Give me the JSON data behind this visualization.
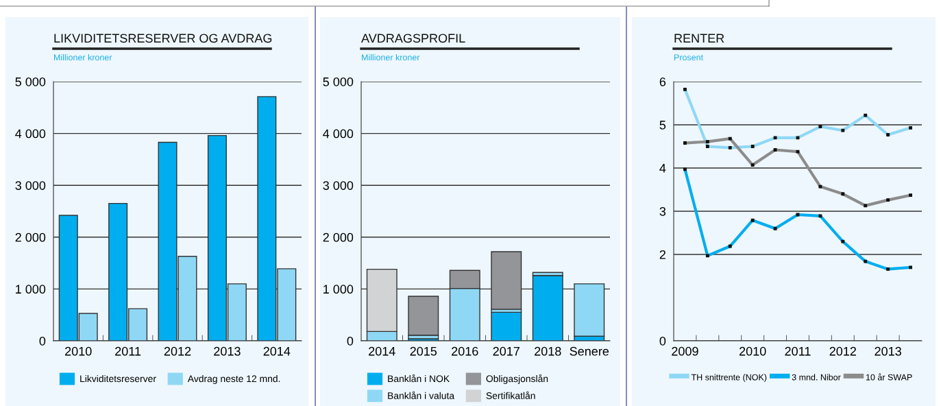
{
  "chart_data": [
    {
      "type": "bar",
      "title": "LIKVIDITETSRESERVER OG AVDRAG",
      "subtitle": "Millioner kroner",
      "categories": [
        "2010",
        "2011",
        "2012",
        "2013",
        "2014"
      ],
      "series": [
        {
          "name": "Likviditetsreserver",
          "color": "#00aeef",
          "values": [
            2420,
            2650,
            3830,
            3960,
            4710
          ]
        },
        {
          "name": "Avdrag neste 12 mnd.",
          "color": "#8fd8f5",
          "values": [
            530,
            620,
            1630,
            1100,
            1390
          ]
        }
      ],
      "ylim": [
        0,
        5000
      ],
      "yticks": [
        0,
        {
          "value": 1000,
          "label": "1 000"
        },
        {
          "value": 2000,
          "label": "2 000"
        },
        {
          "value": 3000,
          "label": "3 000"
        },
        {
          "value": 4000,
          "label": "4 000"
        },
        {
          "value": 5000,
          "label": "5 000"
        }
      ],
      "grid": "y",
      "legend": "bottom"
    },
    {
      "type": "bar",
      "stacked": true,
      "title": "AVDRAGSPROFIL",
      "subtitle": "Millioner kroner",
      "categories": [
        "2014",
        "2015",
        "2016",
        "2017",
        "2018",
        "Senere"
      ],
      "series": [
        {
          "name": "Banklån i NOK",
          "color": "#00aeef",
          "values": [
            null,
            40,
            null,
            550,
            1260,
            90
          ]
        },
        {
          "name": "Banklån i valuta",
          "color": "#8fd8f5",
          "values": [
            180,
            70,
            1010,
            60,
            60,
            1010
          ]
        },
        {
          "name": "Obligasjonslån",
          "color": "#939598",
          "values": [
            0,
            750,
            350,
            1110,
            0,
            0
          ]
        },
        {
          "name": "Sertifikatlån",
          "color": "#d1d3d4",
          "values": [
            1200,
            0,
            0,
            0,
            0,
            0
          ]
        }
      ],
      "ylim": [
        0,
        5000
      ],
      "yticks": [
        0,
        {
          "value": 1000,
          "label": "1 000"
        },
        {
          "value": 2000,
          "label": "2 000"
        },
        {
          "value": 3000,
          "label": "3 000"
        },
        {
          "value": 4000,
          "label": "4 000"
        },
        {
          "value": 5000,
          "label": "5 000"
        }
      ],
      "grid": "y",
      "legend": "bottom"
    },
    {
      "type": "line",
      "title": "RENTER",
      "subtitle": "Prosent",
      "categories": [
        "2009",
        null,
        null,
        "2010",
        null,
        "2011",
        null,
        "2012",
        null,
        "2013",
        null
      ],
      "series": [
        {
          "name": "TH snittrente (NOK)",
          "color": "#8fd8f5",
          "values": [
            5.82,
            4.5,
            4.47,
            4.5,
            4.7,
            4.7,
            4.96,
            4.87,
            5.22,
            4.77,
            4.93
          ]
        },
        {
          "name": "3 mnd. Nibor",
          "color": "#00aeef",
          "values": [
            3.97,
            1.97,
            2.19,
            2.79,
            2.6,
            2.92,
            2.89,
            2.3,
            1.84,
            1.66,
            1.7
          ]
        },
        {
          "name": "10 år SWAP",
          "color": "#8c8c8c",
          "values": [
            4.58,
            4.61,
            4.68,
            4.07,
            4.42,
            4.38,
            3.57,
            3.4,
            3.13,
            3.26,
            3.37
          ]
        }
      ],
      "ylim": [
        0,
        6
      ],
      "yticks": [
        0,
        2,
        3,
        4,
        5,
        6
      ],
      "grid": "y",
      "legend": "bottom",
      "marker": "square",
      "line_style": "solid"
    }
  ]
}
